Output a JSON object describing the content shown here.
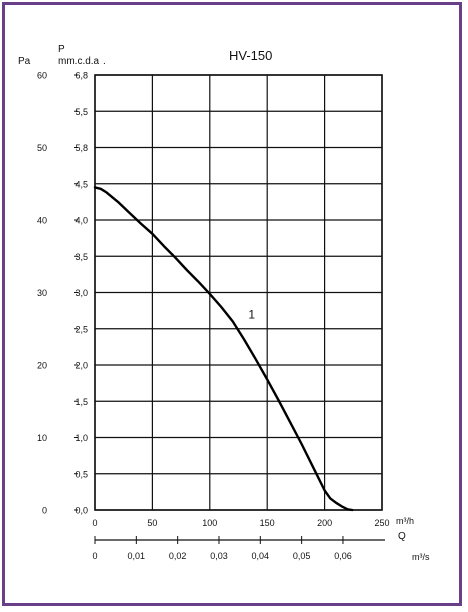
{
  "chart_data": {
    "type": "line",
    "title": "HV-150",
    "left_axis_unit": "Pa",
    "mid_axis_unit_line1": "P",
    "mid_axis_unit_line2": "mm.c.d.a",
    "mid_axis_unit_dot": ".",
    "pa_ticks": [
      "60",
      "50",
      "40",
      "30",
      "20",
      "10",
      "0"
    ],
    "mmcda_ticks": [
      "6,8",
      "5,5",
      "5,8",
      "4,5",
      "4,0",
      "3,5",
      "3,0",
      "2,5",
      "2,0",
      "1,5",
      "1,0",
      "0,5",
      "0,0"
    ],
    "x_m3h_ticks": [
      "0",
      "50",
      "100",
      "150",
      "200",
      "250"
    ],
    "x_m3h_unit": "m³/h",
    "q_label": "Q",
    "x_m3s_ticks": [
      "0",
      "0,01",
      "0,02",
      "0,03",
      "0,04",
      "0,05",
      "0,06"
    ],
    "x_m3s_unit": "m³/s",
    "xlim": [
      0,
      250
    ],
    "ylim_pa": [
      0,
      60
    ],
    "grid": true,
    "series": [
      {
        "name": "1",
        "x": [
          0,
          5,
          10,
          20,
          30,
          40,
          50,
          60,
          70,
          80,
          90,
          100,
          110,
          120,
          130,
          140,
          150,
          160,
          170,
          180,
          190,
          200,
          205,
          210,
          215,
          220,
          224
        ],
        "y": [
          44.5,
          44.3,
          43.8,
          42.5,
          41.0,
          39.5,
          38.1,
          36.4,
          34.8,
          33.1,
          31.5,
          29.8,
          28.0,
          26.0,
          23.5,
          20.8,
          18.0,
          15.1,
          12.1,
          9.1,
          5.9,
          2.7,
          1.6,
          1.0,
          0.5,
          0.1,
          0.0
        ]
      }
    ]
  }
}
